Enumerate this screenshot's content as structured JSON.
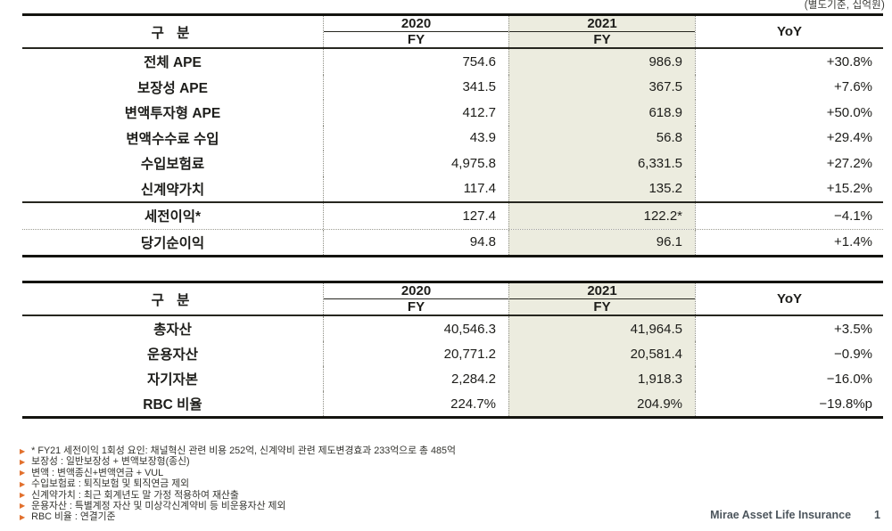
{
  "unit_label": "(별도기준, 십억원)",
  "colors": {
    "highlight_column": "#ececdf",
    "footnote_bullet": "#e2702d",
    "footer_text": "#4c555c"
  },
  "table1": {
    "header": {
      "category": "구 분",
      "year2020": "2020",
      "year2021": "2021",
      "fy": "FY",
      "yoy": "YoY"
    },
    "rows": [
      {
        "label": "전체 APE",
        "fy2020": "754.6",
        "fy2021": "986.9",
        "yoy": "+30.8%"
      },
      {
        "label": "보장성 APE",
        "fy2020": "341.5",
        "fy2021": "367.5",
        "yoy": "+7.6%"
      },
      {
        "label": "변액투자형 APE",
        "fy2020": "412.7",
        "fy2021": "618.9",
        "yoy": "+50.0%"
      },
      {
        "label": "변액수수료 수입",
        "fy2020": "43.9",
        "fy2021": "56.8",
        "yoy": "+29.4%"
      },
      {
        "label": "수입보험료",
        "fy2020": "4,975.8",
        "fy2021": "6,331.5",
        "yoy": "+27.2%"
      },
      {
        "label": "신계약가치",
        "fy2020": "117.4",
        "fy2021": "135.2",
        "yoy": "+15.2%"
      },
      {
        "label": "세전이익*",
        "fy2020": "127.4",
        "fy2021": "122.2*",
        "yoy": "−4.1%"
      },
      {
        "label": "당기순이익",
        "fy2020": "94.8",
        "fy2021": "96.1",
        "yoy": "+1.4%"
      }
    ]
  },
  "table2": {
    "header": {
      "category": "구 분",
      "year2020": "2020",
      "year2021": "2021",
      "fy": "FY",
      "yoy": "YoY"
    },
    "rows": [
      {
        "label": "총자산",
        "fy2020": "40,546.3",
        "fy2021": "41,964.5",
        "yoy": "+3.5%"
      },
      {
        "label": "운용자산",
        "fy2020": "20,771.2",
        "fy2021": "20,581.4",
        "yoy": "−0.9%"
      },
      {
        "label": "자기자본",
        "fy2020": "2,284.2",
        "fy2021": "1,918.3",
        "yoy": "−16.0%"
      },
      {
        "label": "RBC 비율",
        "fy2020": "224.7%",
        "fy2021": "204.9%",
        "yoy": "−19.8%p"
      }
    ]
  },
  "footnotes": [
    "* FY21 세전이익 1회성 요인: 채널혁신 관련 비용 252억, 신계약비 관련 제도변경효과 233억으로 총 485억",
    "보장성 : 일반보장성 + 변액보장형(종신)",
    "변액 : 변액종신+변액연금 + VUL",
    "수입보험료 : 퇴직보험 및 퇴직연금 제외",
    "신계약가치 : 최근 회계년도 말 가정 적용하여 재산출",
    "운용자산 : 특별계정 자산 및 미상각신계약비 등 비운용자산 제외",
    "RBC 비율 : 연결기준"
  ],
  "footer": {
    "brand": "Mirae Asset Life Insurance",
    "page": "1"
  }
}
